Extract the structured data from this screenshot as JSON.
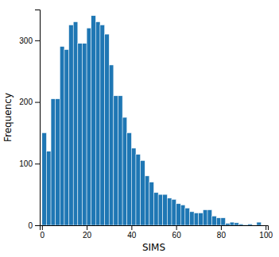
{
  "chart_data": {
    "type": "histogram",
    "xlabel": "SIMS",
    "ylabel": "Frequency",
    "bins": [
      0,
      2,
      4,
      6,
      8,
      10,
      12,
      14,
      16,
      18,
      20,
      22,
      24,
      26,
      28,
      30,
      32,
      34,
      36,
      38,
      40,
      42,
      44,
      46,
      48,
      50,
      52,
      54,
      56,
      58,
      60,
      62,
      64,
      66,
      68,
      70,
      72,
      74,
      76,
      78,
      80,
      82,
      84,
      86,
      88,
      90,
      92,
      94,
      96,
      98
    ],
    "values": [
      150,
      120,
      205,
      205,
      290,
      285,
      325,
      330,
      295,
      295,
      320,
      340,
      330,
      325,
      310,
      260,
      210,
      210,
      175,
      150,
      125,
      115,
      105,
      80,
      70,
      53,
      50,
      50,
      44,
      42,
      35,
      33,
      28,
      22,
      20,
      20,
      25,
      25,
      15,
      12,
      12,
      3,
      5,
      4,
      2,
      1,
      2,
      0,
      5
    ],
    "xlim": [
      -1,
      101
    ],
    "ylim": [
      0,
      350
    ],
    "xticks": [
      0,
      20,
      40,
      60,
      80,
      100
    ],
    "yticks": [
      0,
      100,
      200,
      300
    ],
    "grid": false
  }
}
